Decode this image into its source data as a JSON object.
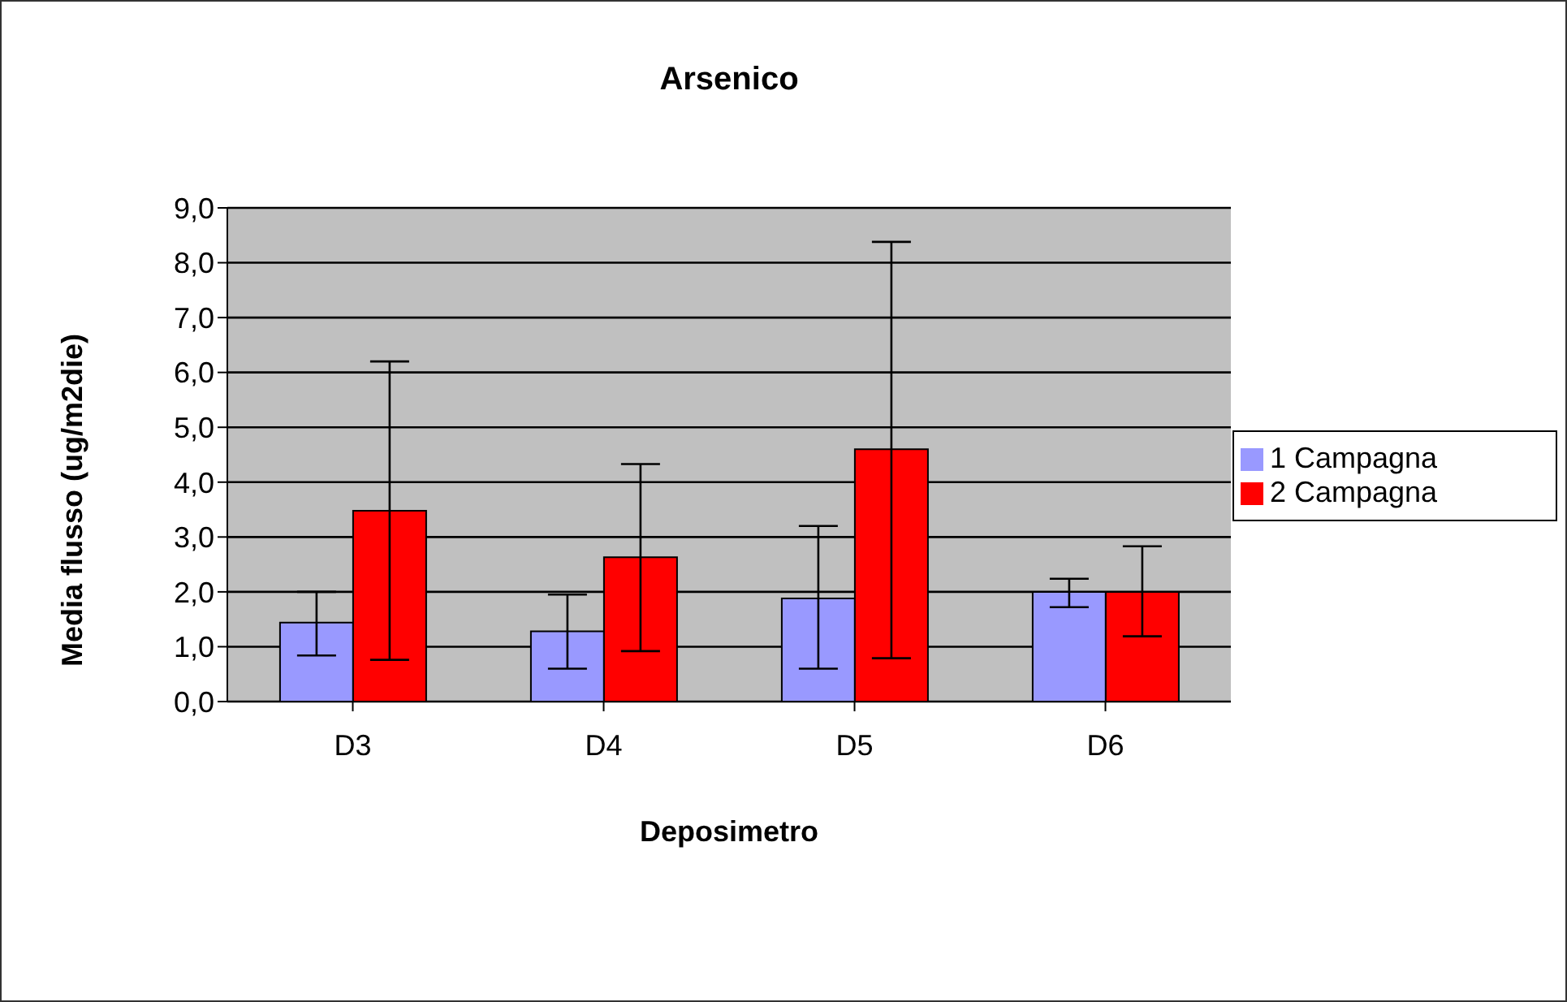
{
  "chart_data": {
    "type": "bar",
    "title": "Arsenico",
    "xlabel": "Deposimetro",
    "ylabel": "Media flusso (ug/m2die)",
    "categories": [
      "D3",
      "D4",
      "D5",
      "D6"
    ],
    "series": [
      {
        "name": "1 Campagna",
        "color": "#9999ff",
        "values": [
          1.44,
          1.28,
          1.88,
          2.0
        ],
        "errors": [
          [
            0.84,
            2.0
          ],
          [
            0.6,
            1.95
          ],
          [
            0.6,
            3.2
          ],
          [
            1.72,
            2.24
          ]
        ]
      },
      {
        "name": "2 Campagna",
        "color": "#ff0000",
        "values": [
          3.48,
          2.63,
          4.6,
          2.0
        ],
        "errors": [
          [
            0.76,
            6.2
          ],
          [
            0.92,
            4.33
          ],
          [
            0.79,
            8.38
          ],
          [
            1.19,
            2.83
          ]
        ]
      }
    ],
    "ylim": [
      0,
      9
    ],
    "yticks": [
      {
        "value": 0,
        "label": "0,0"
      },
      {
        "value": 1,
        "label": "1,0"
      },
      {
        "value": 2,
        "label": "2,0"
      },
      {
        "value": 3,
        "label": "3,0"
      },
      {
        "value": 4,
        "label": "4,0"
      },
      {
        "value": 5,
        "label": "5,0"
      },
      {
        "value": 6,
        "label": "6,0"
      },
      {
        "value": 7,
        "label": "7,0"
      },
      {
        "value": 8,
        "label": "8,0"
      },
      {
        "value": 9,
        "label": "9,0"
      }
    ],
    "grid": "y",
    "legend": "right"
  }
}
